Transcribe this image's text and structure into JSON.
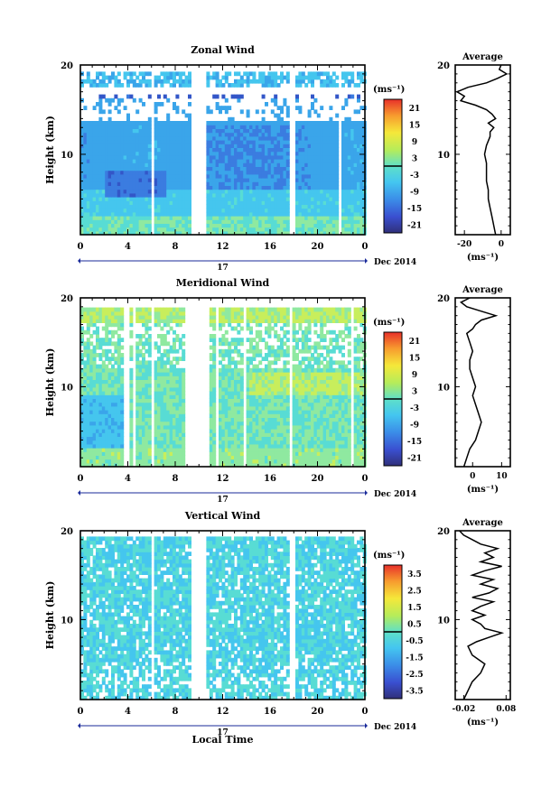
{
  "date_label": "Dec 2014",
  "day_label": "17",
  "x_title": "Local Time",
  "unit_label": "(ms⁻¹)",
  "chart_data": [
    {
      "type": "heatmap",
      "title": "Zonal Wind",
      "ylabel": "Height (km)",
      "xticks": [
        "0",
        "4",
        "8",
        "12",
        "16",
        "20",
        "0"
      ],
      "yticks": [
        "10",
        "20"
      ],
      "xlim": [
        0,
        24
      ],
      "ylim": [
        1,
        20
      ],
      "colorbar_ticks": [
        "21",
        "15",
        "9",
        "3",
        "-3",
        "-9",
        "-15",
        "-21"
      ],
      "colorbar_range": [
        -24,
        24
      ],
      "gaps_hours": [
        [
          5.8,
          6.1
        ],
        [
          9.1,
          10.4
        ],
        [
          17.6,
          17.9
        ],
        [
          21.7,
          21.9
        ],
        [
          22.3,
          22.5
        ],
        [
          23.1,
          23.3
        ]
      ],
      "profile_data": [
        [
          16.5,
          1
        ],
        [
          16,
          3
        ],
        [
          14,
          12
        ],
        [
          12,
          18
        ],
        [
          10,
          18
        ],
        [
          8,
          19
        ],
        [
          6,
          17
        ],
        [
          4,
          16
        ],
        [
          3,
          14
        ],
        [
          2,
          12
        ],
        [
          2.2,
          10
        ],
        [
          1.5,
          8
        ],
        [
          0.5,
          6
        ],
        [
          -0.5,
          5
        ],
        [
          -1,
          4
        ],
        [
          -2,
          3
        ],
        [
          -3,
          2
        ],
        [
          -4,
          1.5
        ],
        [
          -5,
          1.2
        ],
        [
          -5,
          1
        ]
      ],
      "profile_mid_profile": [
        [
          -5,
          5
        ],
        [
          -5,
          8
        ],
        [
          -4,
          10
        ],
        [
          -5,
          12
        ],
        [
          -6,
          14
        ],
        [
          -5,
          16
        ],
        [
          -4,
          17
        ],
        [
          -10,
          19
        ],
        [
          -4,
          20
        ]
      ],
      "profile_hi_profile": [
        [
          -8,
          14
        ],
        [
          -6,
          15
        ],
        [
          -20,
          16
        ],
        [
          -8,
          17
        ],
        [
          -4,
          18
        ],
        [
          -1,
          18.5
        ],
        [
          2,
          19
        ],
        [
          3,
          19.5
        ],
        [
          1,
          20
        ]
      ],
      "average": {
        "title": "Average",
        "xlabel": "(ms⁻¹)",
        "xticks": [
          "-20",
          "0"
        ],
        "yticks": [
          "10",
          "20"
        ],
        "xlim": [
          -25,
          5
        ],
        "profile": [
          [
            -3,
            1
          ],
          [
            -4,
            2
          ],
          [
            -5,
            3
          ],
          [
            -6,
            4
          ],
          [
            -7,
            5
          ],
          [
            -7,
            6
          ],
          [
            -8,
            7
          ],
          [
            -8,
            8
          ],
          [
            -8,
            9
          ],
          [
            -9,
            10
          ],
          [
            -8,
            11
          ],
          [
            -6,
            12
          ],
          [
            -6,
            12.5
          ],
          [
            -4,
            13
          ],
          [
            -7,
            13.5
          ],
          [
            -3,
            14
          ],
          [
            -5,
            14.5
          ],
          [
            -8,
            15
          ],
          [
            -14,
            15.5
          ],
          [
            -22,
            16
          ],
          [
            -20,
            16.5
          ],
          [
            -24,
            17
          ],
          [
            -18,
            17.5
          ],
          [
            -8,
            18
          ],
          [
            -2,
            18.5
          ],
          [
            3,
            19
          ],
          [
            -1,
            19.5
          ],
          [
            0,
            20
          ]
        ]
      }
    },
    {
      "type": "heatmap",
      "title": "Meridional Wind",
      "ylabel": "Height (km)",
      "xticks": [
        "0",
        "4",
        "8",
        "12",
        "16",
        "20",
        "0"
      ],
      "yticks": [
        "10",
        "20"
      ],
      "xlim": [
        0,
        24
      ],
      "ylim": [
        1,
        20
      ],
      "colorbar_ticks": [
        "21",
        "15",
        "9",
        "3",
        "-3",
        "-9",
        "-15",
        "-21"
      ],
      "colorbar_range": [
        -24,
        24
      ],
      "gaps_hours": [
        [
          3.6,
          3.9
        ],
        [
          4.4,
          4.6
        ],
        [
          5.8,
          6.1
        ],
        [
          8.6,
          10.8
        ],
        [
          11.2,
          11.4
        ],
        [
          13.6,
          13.9
        ],
        [
          17.4,
          17.8
        ],
        [
          19.2,
          19.4
        ],
        [
          21.8,
          22.0
        ],
        [
          22.6,
          22.8
        ]
      ],
      "average": {
        "title": "Average",
        "xlabel": "(ms⁻¹)",
        "xticks": [
          "0",
          "10"
        ],
        "yticks": [
          "10",
          "20"
        ],
        "xlim": [
          -6,
          13
        ],
        "profile": [
          [
            -3,
            1
          ],
          [
            -2,
            2
          ],
          [
            -1,
            3
          ],
          [
            1,
            4
          ],
          [
            2,
            5
          ],
          [
            3,
            6
          ],
          [
            2,
            7
          ],
          [
            1,
            8
          ],
          [
            0,
            9
          ],
          [
            1,
            10
          ],
          [
            0,
            11
          ],
          [
            -1,
            12
          ],
          [
            -1,
            13
          ],
          [
            0,
            14
          ],
          [
            -1,
            15
          ],
          [
            -2,
            16
          ],
          [
            0,
            16.5
          ],
          [
            1,
            17
          ],
          [
            3,
            17.5
          ],
          [
            8,
            18
          ],
          [
            3,
            18.5
          ],
          [
            -2,
            19
          ],
          [
            -4,
            19.5
          ],
          [
            -1,
            20
          ]
        ]
      }
    },
    {
      "type": "heatmap",
      "title": "Vertical Wind",
      "ylabel": "Height (km)",
      "xticks": [
        "0",
        "4",
        "8",
        "12",
        "16",
        "20",
        "0"
      ],
      "yticks": [
        "10",
        "20"
      ],
      "xlim": [
        0,
        24
      ],
      "ylim": [
        1,
        20
      ],
      "colorbar_ticks": [
        "3.5",
        "2.5",
        "1.5",
        "0.5",
        "-0.5",
        "-1.5",
        "-2.5",
        "-3.5"
      ],
      "colorbar_range": [
        -4,
        4
      ],
      "gaps_hours": [
        [
          5.8,
          6.1
        ],
        [
          9.1,
          10.4
        ],
        [
          17.6,
          17.9
        ],
        [
          21.3,
          21.5
        ],
        [
          22.3,
          22.5
        ]
      ],
      "average": {
        "title": "Average",
        "xlabel": "(ms⁻¹)",
        "xticks": [
          "-0.02",
          "0.08"
        ],
        "yticks": [
          "10",
          "20"
        ],
        "xlim": [
          -0.04,
          0.09
        ],
        "profile": [
          [
            -0.02,
            1
          ],
          [
            -0.01,
            2
          ],
          [
            0.0,
            3
          ],
          [
            0.02,
            4
          ],
          [
            0.03,
            5
          ],
          [
            0.0,
            6
          ],
          [
            -0.01,
            7
          ],
          [
            0.01,
            7.5
          ],
          [
            0.04,
            8
          ],
          [
            0.07,
            8.5
          ],
          [
            0.03,
            9
          ],
          [
            0.02,
            9.5
          ],
          [
            0.0,
            10
          ],
          [
            0.03,
            10.5
          ],
          [
            0.0,
            11
          ],
          [
            0.02,
            11.5
          ],
          [
            0.05,
            12
          ],
          [
            0.0,
            12.5
          ],
          [
            0.04,
            13
          ],
          [
            0.06,
            13.5
          ],
          [
            0.02,
            14
          ],
          [
            0.05,
            14.5
          ],
          [
            0.0,
            15
          ],
          [
            0.03,
            15.5
          ],
          [
            0.07,
            16
          ],
          [
            0.02,
            16.5
          ],
          [
            0.05,
            17
          ],
          [
            0.03,
            17.5
          ],
          [
            0.06,
            18
          ],
          [
            0.02,
            18.5
          ],
          [
            0.0,
            19
          ],
          [
            -0.02,
            19.5
          ],
          [
            -0.03,
            20
          ]
        ]
      }
    }
  ]
}
